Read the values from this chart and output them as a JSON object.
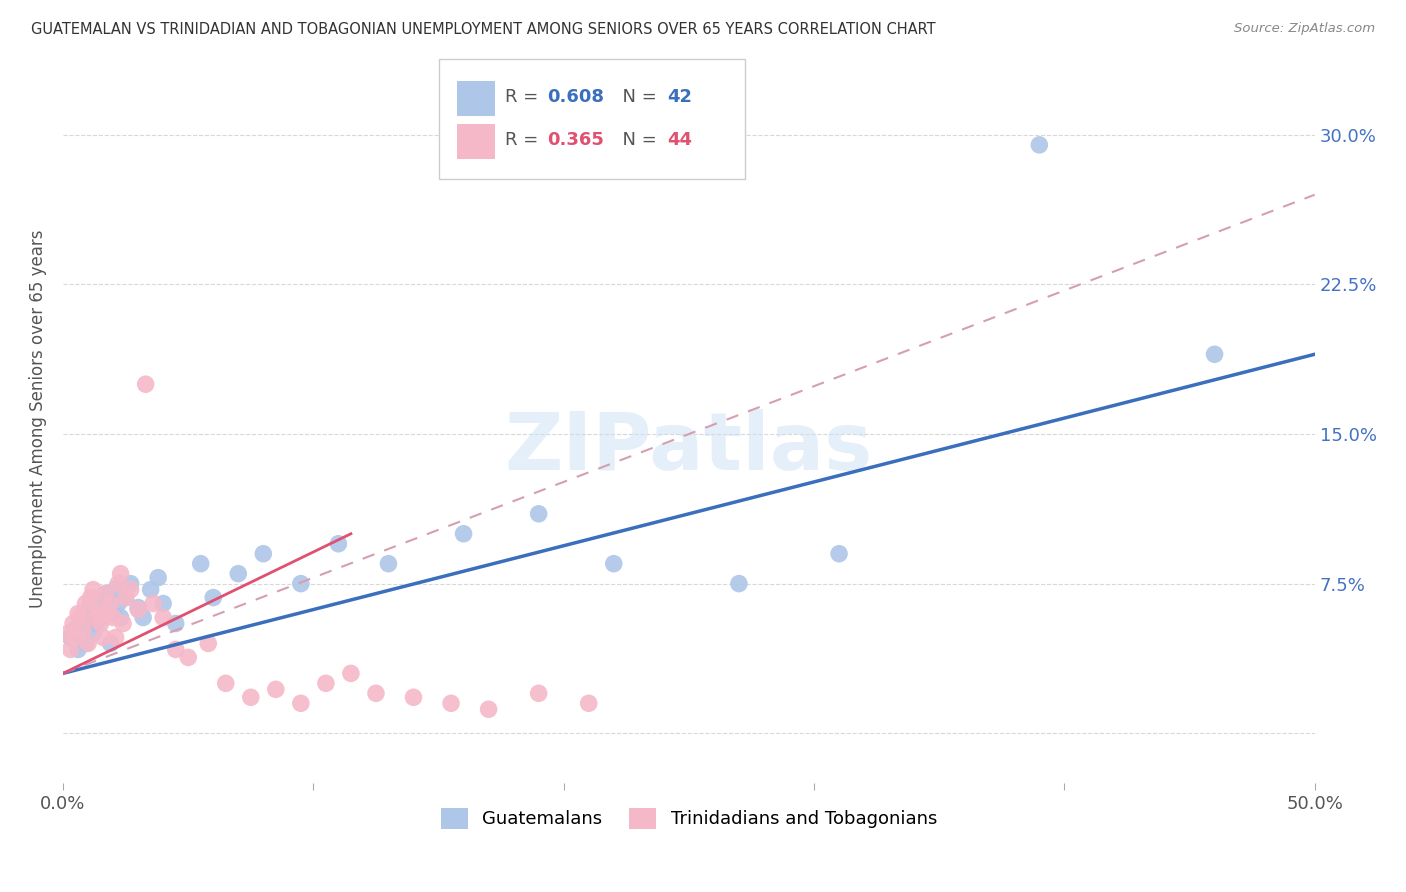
{
  "title": "GUATEMALAN VS TRINIDADIAN AND TOBAGONIAN UNEMPLOYMENT AMONG SENIORS OVER 65 YEARS CORRELATION CHART",
  "source": "Source: ZipAtlas.com",
  "ylabel": "Unemployment Among Seniors over 65 years",
  "xlim": [
    0.0,
    0.5
  ],
  "ylim": [
    -0.025,
    0.34
  ],
  "yticks": [
    0.0,
    0.075,
    0.15,
    0.225,
    0.3
  ],
  "yticklabels_right": [
    "",
    "7.5%",
    "15.0%",
    "22.5%",
    "30.0%"
  ],
  "xticks": [
    0.0,
    0.1,
    0.2,
    0.3,
    0.4,
    0.5
  ],
  "xticklabels": [
    "0.0%",
    "",
    "",
    "",
    "",
    "50.0%"
  ],
  "blue_color": "#aec6e8",
  "blue_line_color": "#3a6fbd",
  "pink_color": "#f5b8c8",
  "pink_line_color": "#e05070",
  "dashed_line_color": "#d4a0b0",
  "watermark": "ZIPatlas",
  "background_color": "#ffffff",
  "guatemalan_x": [
    0.003,
    0.005,
    0.006,
    0.007,
    0.008,
    0.009,
    0.01,
    0.011,
    0.012,
    0.013,
    0.014,
    0.015,
    0.016,
    0.017,
    0.018,
    0.019,
    0.02,
    0.021,
    0.022,
    0.023,
    0.025,
    0.027,
    0.03,
    0.032,
    0.035,
    0.038,
    0.04,
    0.045,
    0.055,
    0.06,
    0.07,
    0.08,
    0.095,
    0.11,
    0.13,
    0.16,
    0.19,
    0.22,
    0.27,
    0.31,
    0.39,
    0.46
  ],
  "guatemalan_y": [
    0.048,
    0.052,
    0.042,
    0.055,
    0.06,
    0.045,
    0.058,
    0.065,
    0.05,
    0.055,
    0.062,
    0.068,
    0.058,
    0.07,
    0.063,
    0.045,
    0.06,
    0.072,
    0.065,
    0.058,
    0.068,
    0.075,
    0.063,
    0.058,
    0.072,
    0.078,
    0.065,
    0.055,
    0.085,
    0.068,
    0.08,
    0.09,
    0.075,
    0.095,
    0.085,
    0.1,
    0.11,
    0.085,
    0.075,
    0.09,
    0.295,
    0.19
  ],
  "trinidadian_x": [
    0.002,
    0.003,
    0.004,
    0.005,
    0.006,
    0.007,
    0.008,
    0.009,
    0.01,
    0.011,
    0.012,
    0.013,
    0.014,
    0.015,
    0.016,
    0.017,
    0.018,
    0.019,
    0.02,
    0.021,
    0.022,
    0.023,
    0.024,
    0.025,
    0.027,
    0.03,
    0.033,
    0.036,
    0.04,
    0.045,
    0.05,
    0.058,
    0.065,
    0.075,
    0.085,
    0.095,
    0.105,
    0.115,
    0.125,
    0.14,
    0.155,
    0.17,
    0.19,
    0.21
  ],
  "trinidadian_y": [
    0.05,
    0.042,
    0.055,
    0.048,
    0.06,
    0.058,
    0.052,
    0.065,
    0.045,
    0.068,
    0.072,
    0.058,
    0.062,
    0.055,
    0.048,
    0.07,
    0.06,
    0.065,
    0.058,
    0.048,
    0.075,
    0.08,
    0.055,
    0.068,
    0.072,
    0.062,
    0.175,
    0.065,
    0.058,
    0.042,
    0.038,
    0.045,
    0.025,
    0.018,
    0.022,
    0.015,
    0.025,
    0.03,
    0.02,
    0.018,
    0.015,
    0.012,
    0.02,
    0.015
  ]
}
